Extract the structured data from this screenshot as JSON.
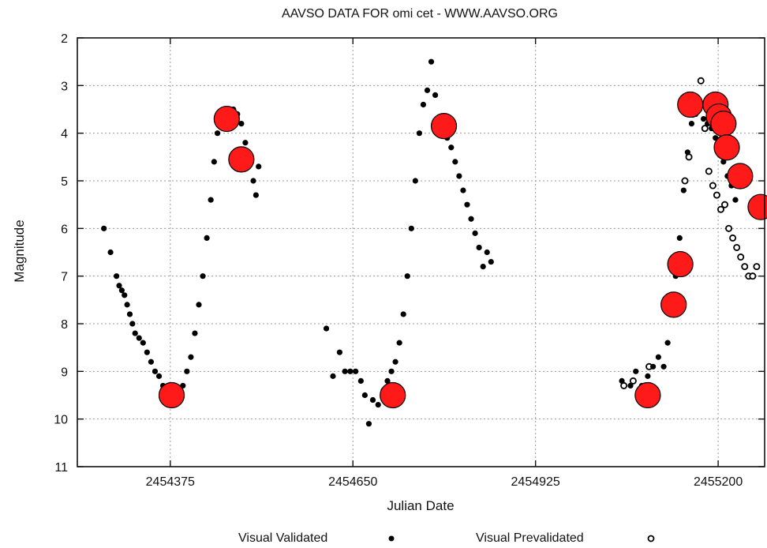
{
  "chart_data": {
    "type": "scatter",
    "title": "AAVSO DATA FOR omi cet - WWW.AAVSO.ORG",
    "xlabel": "Julian Date",
    "ylabel": "Magnitude",
    "xlim": [
      2454235,
      2455270
    ],
    "ylim": [
      2,
      11
    ],
    "y_inverted": true,
    "grid": true,
    "x_ticks": [
      "2454375",
      "2454650",
      "2454925",
      "2455200"
    ],
    "y_ticks": [
      "2",
      "3",
      "4",
      "5",
      "6",
      "7",
      "8",
      "9",
      "10",
      "11"
    ],
    "legend_position": "bottom",
    "series": [
      {
        "name": "Visual Validated",
        "marker": "filled-dot",
        "color": "#000000",
        "points": [
          [
            2454275,
            6.0
          ],
          [
            2454285,
            6.5
          ],
          [
            2454294,
            7.0
          ],
          [
            2454298,
            7.2
          ],
          [
            2454302,
            7.3
          ],
          [
            2454306,
            7.4
          ],
          [
            2454310,
            7.6
          ],
          [
            2454314,
            7.8
          ],
          [
            2454318,
            8.0
          ],
          [
            2454322,
            8.2
          ],
          [
            2454328,
            8.3
          ],
          [
            2454334,
            8.4
          ],
          [
            2454340,
            8.6
          ],
          [
            2454346,
            8.8
          ],
          [
            2454352,
            9.0
          ],
          [
            2454358,
            9.1
          ],
          [
            2454364,
            9.3
          ],
          [
            2454370,
            9.4
          ],
          [
            2454376,
            9.6
          ],
          [
            2454382,
            9.7
          ],
          [
            2454388,
            9.5
          ],
          [
            2454394,
            9.3
          ],
          [
            2454400,
            9.0
          ],
          [
            2454406,
            8.7
          ],
          [
            2454412,
            8.2
          ],
          [
            2454418,
            7.6
          ],
          [
            2454424,
            7.0
          ],
          [
            2454430,
            6.2
          ],
          [
            2454436,
            5.4
          ],
          [
            2454441,
            4.6
          ],
          [
            2454446,
            4.0
          ],
          [
            2454452,
            3.8
          ],
          [
            2454458,
            3.7
          ],
          [
            2454464,
            3.6
          ],
          [
            2454470,
            3.5
          ],
          [
            2454476,
            3.6
          ],
          [
            2454482,
            3.8
          ],
          [
            2454488,
            4.2
          ],
          [
            2454494,
            4.6
          ],
          [
            2454500,
            5.0
          ],
          [
            2454504,
            5.3
          ],
          [
            2454508,
            4.7
          ],
          [
            2454610,
            8.1
          ],
          [
            2454620,
            9.1
          ],
          [
            2454630,
            8.6
          ],
          [
            2454638,
            9.0
          ],
          [
            2454646,
            9.0
          ],
          [
            2454654,
            9.0
          ],
          [
            2454662,
            9.2
          ],
          [
            2454668,
            9.5
          ],
          [
            2454674,
            10.1
          ],
          [
            2454680,
            9.6
          ],
          [
            2454688,
            9.7
          ],
          [
            2454696,
            9.4
          ],
          [
            2454702,
            9.2
          ],
          [
            2454708,
            9.0
          ],
          [
            2454714,
            8.8
          ],
          [
            2454720,
            8.4
          ],
          [
            2454726,
            7.8
          ],
          [
            2454732,
            7.0
          ],
          [
            2454738,
            6.0
          ],
          [
            2454744,
            5.0
          ],
          [
            2454750,
            4.0
          ],
          [
            2454756,
            3.4
          ],
          [
            2454762,
            3.1
          ],
          [
            2454768,
            2.5
          ],
          [
            2454774,
            3.2
          ],
          [
            2454780,
            3.7
          ],
          [
            2454786,
            3.9
          ],
          [
            2454792,
            4.1
          ],
          [
            2454798,
            4.3
          ],
          [
            2454804,
            4.6
          ],
          [
            2454810,
            4.9
          ],
          [
            2454816,
            5.2
          ],
          [
            2454822,
            5.5
          ],
          [
            2454828,
            5.8
          ],
          [
            2454834,
            6.1
          ],
          [
            2454840,
            6.4
          ],
          [
            2454846,
            6.8
          ],
          [
            2454852,
            6.5
          ],
          [
            2454858,
            6.7
          ],
          [
            2455055,
            9.2
          ],
          [
            2455068,
            9.3
          ],
          [
            2455076,
            9.0
          ],
          [
            2455085,
            9.3
          ],
          [
            2455094,
            9.1
          ],
          [
            2455102,
            8.9
          ],
          [
            2455110,
            8.7
          ],
          [
            2455118,
            8.9
          ],
          [
            2455124,
            8.4
          ],
          [
            2455130,
            7.8
          ],
          [
            2455136,
            7.0
          ],
          [
            2455142,
            6.2
          ],
          [
            2455148,
            5.2
          ],
          [
            2455154,
            4.4
          ],
          [
            2455160,
            3.8
          ],
          [
            2455166,
            3.6
          ],
          [
            2455172,
            3.5
          ],
          [
            2455178,
            3.7
          ],
          [
            2455184,
            3.8
          ],
          [
            2455190,
            3.9
          ],
          [
            2455196,
            4.1
          ],
          [
            2455202,
            4.3
          ],
          [
            2455208,
            4.6
          ],
          [
            2455214,
            4.9
          ],
          [
            2455220,
            5.1
          ],
          [
            2455226,
            5.4
          ]
        ]
      },
      {
        "name": "Visual Prevalidated",
        "marker": "open-circle",
        "color": "#000000",
        "points": [
          [
            2455058,
            9.3
          ],
          [
            2455072,
            9.2
          ],
          [
            2455096,
            8.9
          ],
          [
            2455150,
            5.0
          ],
          [
            2455156,
            4.5
          ],
          [
            2455162,
            3.6
          ],
          [
            2455168,
            3.4
          ],
          [
            2455174,
            2.9
          ],
          [
            2455180,
            3.9
          ],
          [
            2455186,
            4.8
          ],
          [
            2455192,
            5.1
          ],
          [
            2455198,
            5.3
          ],
          [
            2455204,
            5.6
          ],
          [
            2455210,
            5.5
          ],
          [
            2455216,
            6.0
          ],
          [
            2455222,
            6.2
          ],
          [
            2455228,
            6.4
          ],
          [
            2455234,
            6.6
          ],
          [
            2455240,
            6.8
          ],
          [
            2455246,
            7.0
          ],
          [
            2455252,
            7.0
          ],
          [
            2455258,
            6.8
          ]
        ]
      },
      {
        "name": "",
        "marker": "large-red-circle",
        "color": "#ff1a1a",
        "points": [
          [
            2454377,
            9.5
          ],
          [
            2454460,
            3.7
          ],
          [
            2454482,
            4.55
          ],
          [
            2454710,
            9.5
          ],
          [
            2454787,
            3.85
          ],
          [
            2455094,
            9.5
          ],
          [
            2455133,
            7.6
          ],
          [
            2455143,
            6.75
          ],
          [
            2455158,
            3.4
          ],
          [
            2455196,
            3.4
          ],
          [
            2455201,
            3.65
          ],
          [
            2455208,
            3.8
          ],
          [
            2455213,
            4.3
          ],
          [
            2455233,
            4.9
          ],
          [
            2455264,
            5.55
          ]
        ]
      }
    ]
  }
}
